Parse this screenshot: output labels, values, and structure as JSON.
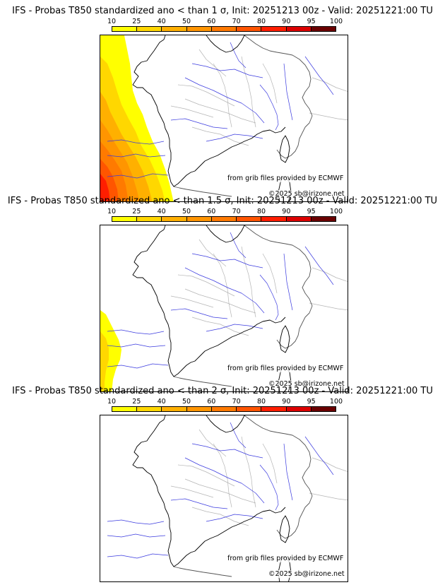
{
  "colorbar": {
    "labels": [
      "10",
      "25",
      "40",
      "50",
      "60",
      "70",
      "80",
      "90",
      "95",
      "100"
    ],
    "colors": [
      "#ffff00",
      "#ffd700",
      "#ffb000",
      "#ff9500",
      "#ff7a00",
      "#ff5500",
      "#ff1e00",
      "#dd0000",
      "#aa0000",
      "#6b0000"
    ]
  },
  "credits": {
    "source": "from grib files provided by ECMWF",
    "copyright": "©2025 sb@irizone.net"
  },
  "panels": [
    {
      "title": "IFS - Probas T850  standardized ano < than 1 σ, Init: 20251213 00z - Valid: 20251221:00 TU",
      "threshold": "1 σ",
      "max_probability": 80
    },
    {
      "title": "IFS - Probas T850  standardized ano < than 1.5 σ, Init: 20251213 00z - Valid: 20251221:00 TU",
      "threshold": "1.5 σ",
      "max_probability": 25
    },
    {
      "title": "IFS - Probas T850  standardized ano < than 2 σ, Init: 20251213 00z - Valid: 20251221:00 TU",
      "threshold": "2 σ",
      "max_probability": 0
    }
  ]
}
